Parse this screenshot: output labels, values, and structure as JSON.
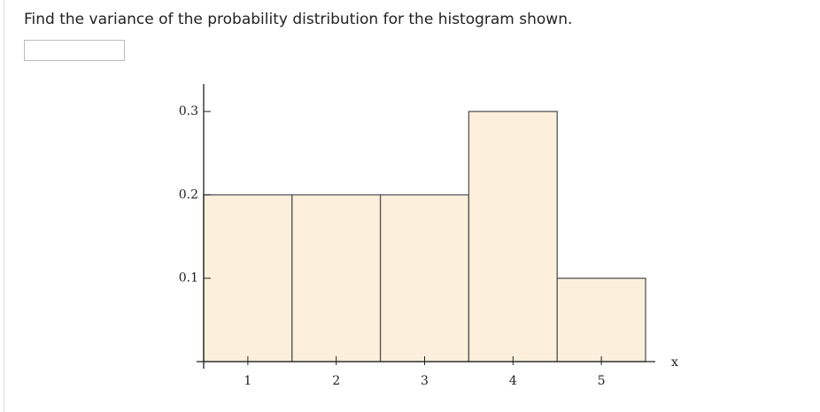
{
  "question": "Find the variance of the probability distribution for the histogram shown.",
  "chart_data": {
    "type": "histogram",
    "xlabel": "x",
    "x": [
      1,
      2,
      3,
      4,
      5
    ],
    "values": [
      0.2,
      0.2,
      0.2,
      0.3,
      0.1
    ],
    "color": "#fcefdc",
    "xlim": [
      0.42,
      5.61
    ],
    "xticks": [
      1,
      2,
      3,
      4,
      5
    ],
    "ylim": [
      0,
      0.333
    ],
    "yticks": [
      0.1,
      0.2,
      0.3
    ]
  }
}
